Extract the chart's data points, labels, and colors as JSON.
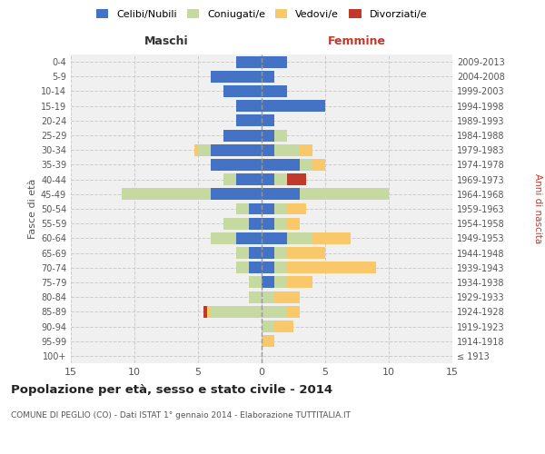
{
  "age_groups": [
    "100+",
    "95-99",
    "90-94",
    "85-89",
    "80-84",
    "75-79",
    "70-74",
    "65-69",
    "60-64",
    "55-59",
    "50-54",
    "45-49",
    "40-44",
    "35-39",
    "30-34",
    "25-29",
    "20-24",
    "15-19",
    "10-14",
    "5-9",
    "0-4"
  ],
  "birth_years": [
    "≤ 1913",
    "1914-1918",
    "1919-1923",
    "1924-1928",
    "1929-1933",
    "1934-1938",
    "1939-1943",
    "1944-1948",
    "1949-1953",
    "1954-1958",
    "1959-1963",
    "1964-1968",
    "1969-1973",
    "1974-1978",
    "1979-1983",
    "1984-1988",
    "1989-1993",
    "1994-1998",
    "1999-2003",
    "2004-2008",
    "2009-2013"
  ],
  "males": {
    "celibi": [
      0,
      0,
      0,
      0,
      0,
      0,
      1,
      1,
      2,
      1,
      1,
      4,
      2,
      4,
      4,
      3,
      2,
      2,
      3,
      4,
      2
    ],
    "coniugati": [
      0,
      0,
      0,
      4,
      1,
      1,
      1,
      1,
      2,
      2,
      1,
      7,
      1,
      0,
      1,
      0,
      0,
      0,
      0,
      0,
      0
    ],
    "vedovi": [
      0,
      0,
      0,
      0.3,
      0,
      0,
      0,
      0,
      0,
      0,
      0,
      0,
      0,
      0,
      0.3,
      0,
      0,
      0,
      0,
      0,
      0
    ],
    "divorziati": [
      0,
      0,
      0,
      0.3,
      0,
      0,
      0,
      0,
      0,
      0,
      0,
      0,
      0,
      0,
      0,
      0,
      0,
      0,
      0,
      0,
      0
    ]
  },
  "females": {
    "celibi": [
      0,
      0,
      0,
      0,
      0,
      1,
      1,
      1,
      2,
      1,
      1,
      3,
      1,
      3,
      1,
      1,
      1,
      5,
      2,
      1,
      2
    ],
    "coniugati": [
      0,
      0,
      1,
      2,
      1,
      1,
      1,
      1,
      2,
      1,
      1,
      7,
      1,
      1,
      2,
      1,
      0,
      0,
      0,
      0,
      0
    ],
    "vedovi": [
      0,
      1,
      1.5,
      1,
      2,
      2,
      7,
      3,
      3,
      1,
      1.5,
      0,
      0,
      1,
      1,
      0,
      0,
      0,
      0,
      0,
      0
    ],
    "divorziati": [
      0,
      0,
      0,
      0,
      0,
      0,
      0,
      0,
      0,
      0,
      0,
      0,
      1.5,
      0,
      0,
      0,
      0,
      0,
      0,
      0,
      0
    ]
  },
  "colors": {
    "celibi": "#4472C4",
    "coniugati": "#C5D9A0",
    "vedovi": "#F9C86A",
    "divorziati": "#C0392B"
  },
  "xlim": 15,
  "title": "Popolazione per età, sesso e stato civile - 2014",
  "subtitle": "COMUNE DI PEGLIO (CO) - Dati ISTAT 1° gennaio 2014 - Elaborazione TUTTITALIA.IT",
  "ylabel_left": "Fasce di età",
  "ylabel_right": "Anni di nascita",
  "xlabel_left": "Maschi",
  "xlabel_right": "Femmine",
  "bg_color": "#F0F0F0",
  "grid_color": "#CCCCCC"
}
